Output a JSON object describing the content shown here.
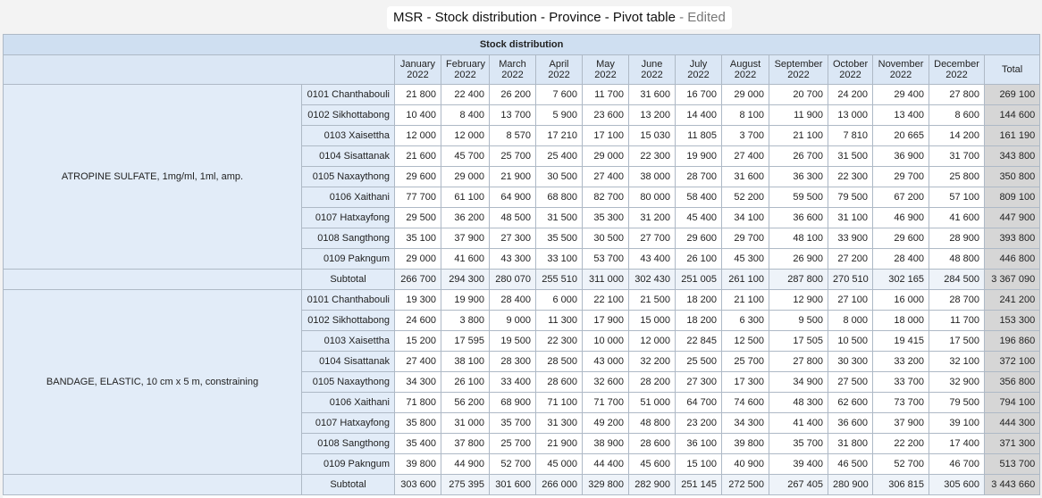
{
  "window": {
    "title": "MSR - Stock distribution - Province - Pivot table",
    "status": "- Edited"
  },
  "table": {
    "title": "Stock distribution",
    "columns": [
      {
        "m": "January",
        "y": "2022"
      },
      {
        "m": "February",
        "y": "2022"
      },
      {
        "m": "March",
        "y": "2022"
      },
      {
        "m": "April",
        "y": "2022"
      },
      {
        "m": "May",
        "y": "2022"
      },
      {
        "m": "June",
        "y": "2022"
      },
      {
        "m": "July",
        "y": "2022"
      },
      {
        "m": "August",
        "y": "2022"
      },
      {
        "m": "September",
        "y": "2022"
      },
      {
        "m": "October",
        "y": "2022"
      },
      {
        "m": "November",
        "y": "2022"
      },
      {
        "m": "December",
        "y": "2022"
      }
    ],
    "total_label": "Total",
    "subtotal_label": "Subtotal",
    "groups": [
      {
        "product": "ATROPINE SULFATE, 1mg/ml, 1ml, amp.",
        "rows": [
          {
            "district": "0101 Chanthabouli",
            "values": [
              "21 800",
              "22 400",
              "26 200",
              "7 600",
              "11 700",
              "31 600",
              "16 700",
              "29 000",
              "20 700",
              "24 200",
              "29 400",
              "27 800"
            ],
            "total": "269 100"
          },
          {
            "district": "0102 Sikhottabong",
            "values": [
              "10 400",
              "8 400",
              "13 700",
              "5 900",
              "23 600",
              "13 200",
              "14 400",
              "8 100",
              "11 900",
              "13 000",
              "13 400",
              "8 600"
            ],
            "total": "144 600"
          },
          {
            "district": "0103 Xaisettha",
            "values": [
              "12 000",
              "12 000",
              "8 570",
              "17 210",
              "17 100",
              "15 030",
              "11 805",
              "3 700",
              "21 100",
              "7 810",
              "20 665",
              "14 200"
            ],
            "total": "161 190"
          },
          {
            "district": "0104 Sisattanak",
            "values": [
              "21 600",
              "45 700",
              "25 700",
              "25 400",
              "29 000",
              "22 300",
              "19 900",
              "27 400",
              "26 700",
              "31 500",
              "36 900",
              "31 700"
            ],
            "total": "343 800"
          },
          {
            "district": "0105 Naxaythong",
            "values": [
              "29 600",
              "29 000",
              "21 900",
              "30 500",
              "27 400",
              "38 000",
              "28 700",
              "31 600",
              "36 300",
              "22 300",
              "29 700",
              "25 800"
            ],
            "total": "350 800"
          },
          {
            "district": "0106 Xaithani",
            "values": [
              "77 700",
              "61 100",
              "64 900",
              "68 800",
              "82 700",
              "80 000",
              "58 400",
              "52 200",
              "59 500",
              "79 500",
              "67 200",
              "57 100"
            ],
            "total": "809 100"
          },
          {
            "district": "0107 Hatxayfong",
            "values": [
              "29 500",
              "36 200",
              "48 500",
              "31 500",
              "35 300",
              "31 200",
              "45 400",
              "34 100",
              "36 600",
              "31 100",
              "46 900",
              "41 600"
            ],
            "total": "447 900"
          },
          {
            "district": "0108 Sangthong",
            "values": [
              "35 100",
              "37 900",
              "27 300",
              "35 500",
              "30 500",
              "27 700",
              "29 600",
              "29 700",
              "48 100",
              "33 900",
              "29 600",
              "28 900"
            ],
            "total": "393 800"
          },
          {
            "district": "0109 Pakngum",
            "values": [
              "29 000",
              "41 600",
              "43 300",
              "33 100",
              "53 700",
              "43 400",
              "26 100",
              "45 300",
              "26 900",
              "27 200",
              "28 400",
              "48 800"
            ],
            "total": "446 800"
          }
        ],
        "subtotal": {
          "values": [
            "266 700",
            "294 300",
            "280 070",
            "255 510",
            "311 000",
            "302 430",
            "251 005",
            "261 100",
            "287 800",
            "270 510",
            "302 165",
            "284 500"
          ],
          "total": "3 367 090"
        }
      },
      {
        "product": "BANDAGE, ELASTIC, 10 cm x 5 m, constraining",
        "rows": [
          {
            "district": "0101 Chanthabouli",
            "values": [
              "19 300",
              "19 900",
              "28 400",
              "6 000",
              "22 100",
              "21 500",
              "18 200",
              "21 100",
              "12 900",
              "27 100",
              "16 000",
              "28 700"
            ],
            "total": "241 200"
          },
          {
            "district": "0102 Sikhottabong",
            "values": [
              "24 600",
              "3 800",
              "9 000",
              "11 300",
              "17 900",
              "15 000",
              "18 200",
              "6 300",
              "9 500",
              "8 000",
              "18 000",
              "11 700"
            ],
            "total": "153 300"
          },
          {
            "district": "0103 Xaisettha",
            "values": [
              "15 200",
              "17 595",
              "19 500",
              "22 300",
              "10 000",
              "12 000",
              "22 845",
              "12 500",
              "17 505",
              "10 500",
              "19 415",
              "17 500"
            ],
            "total": "196 860"
          },
          {
            "district": "0104 Sisattanak",
            "values": [
              "27 400",
              "38 100",
              "28 300",
              "28 500",
              "43 000",
              "32 200",
              "25 500",
              "25 700",
              "27 800",
              "30 300",
              "33 200",
              "32 100"
            ],
            "total": "372 100"
          },
          {
            "district": "0105 Naxaythong",
            "values": [
              "34 300",
              "26 100",
              "33 400",
              "28 600",
              "32 600",
              "28 200",
              "27 300",
              "17 300",
              "34 900",
              "27 500",
              "33 700",
              "32 900"
            ],
            "total": "356 800"
          },
          {
            "district": "0106 Xaithani",
            "values": [
              "71 800",
              "56 200",
              "68 900",
              "71 100",
              "71 700",
              "51 000",
              "64 700",
              "74 600",
              "48 300",
              "62 600",
              "73 700",
              "79 500"
            ],
            "total": "794 100"
          },
          {
            "district": "0107 Hatxayfong",
            "values": [
              "35 800",
              "31 000",
              "35 700",
              "31 300",
              "49 200",
              "48 800",
              "23 200",
              "34 300",
              "41 400",
              "36 600",
              "37 900",
              "39 100"
            ],
            "total": "444 300"
          },
          {
            "district": "0108 Sangthong",
            "values": [
              "35 400",
              "37 800",
              "25 700",
              "21 900",
              "38 900",
              "28 600",
              "36 100",
              "39 800",
              "35 700",
              "31 800",
              "22 200",
              "17 400"
            ],
            "total": "371 300"
          },
          {
            "district": "0109 Pakngum",
            "values": [
              "39 800",
              "44 900",
              "52 700",
              "45 000",
              "44 400",
              "45 600",
              "15 100",
              "40 900",
              "39 400",
              "46 500",
              "52 700",
              "46 700"
            ],
            "total": "513 700"
          }
        ],
        "subtotal": {
          "values": [
            "303 600",
            "275 395",
            "301 600",
            "266 000",
            "329 800",
            "282 900",
            "251 145",
            "272 500",
            "267 405",
            "280 900",
            "306 815",
            "305 600"
          ],
          "total": "3 443 660"
        }
      }
    ]
  }
}
